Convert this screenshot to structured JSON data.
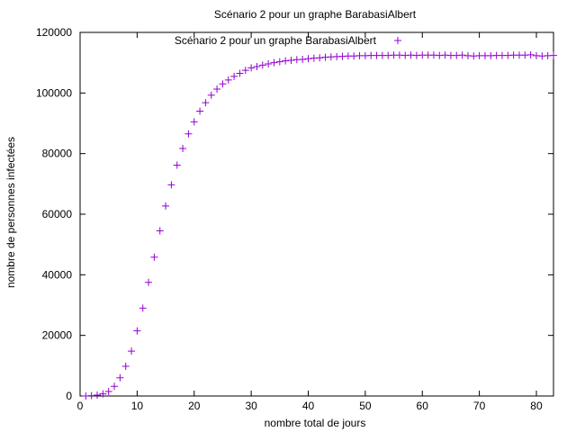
{
  "chart_data": {
    "type": "scatter",
    "title": "Scénario 2 pour un graphe BarabasiAlbert",
    "xlabel": "nombre total de jours",
    "ylabel": "nombre de personnes infectées",
    "xlim": [
      0,
      83
    ],
    "ylim": [
      0,
      120000
    ],
    "x_ticks": [
      0,
      10,
      20,
      30,
      40,
      50,
      60,
      70,
      80
    ],
    "y_ticks": [
      0,
      20000,
      40000,
      60000,
      80000,
      100000,
      120000
    ],
    "grid": false,
    "legend_position": "top-right",
    "marker": "plus",
    "series": [
      {
        "name": "Scénario 2 pour un graphe BarabasiAlbert",
        "color": "#9400d3",
        "x": [
          1,
          2,
          3,
          4,
          5,
          6,
          7,
          8,
          9,
          10,
          11,
          12,
          13,
          14,
          15,
          16,
          17,
          18,
          19,
          20,
          21,
          22,
          23,
          24,
          25,
          26,
          27,
          28,
          29,
          30,
          31,
          32,
          33,
          34,
          35,
          36,
          37,
          38,
          39,
          40,
          41,
          42,
          43,
          44,
          45,
          46,
          47,
          48,
          49,
          50,
          51,
          52,
          53,
          54,
          55,
          56,
          57,
          58,
          59,
          60,
          61,
          62,
          63,
          64,
          65,
          66,
          67,
          68,
          69,
          70,
          71,
          72,
          73,
          74,
          75,
          76,
          77,
          78,
          79,
          80,
          81,
          82,
          83
        ],
        "y": [
          0,
          100,
          300,
          700,
          1500,
          3200,
          6000,
          9800,
          14800,
          21500,
          29000,
          37500,
          45800,
          54500,
          62700,
          69700,
          76200,
          81700,
          86500,
          90500,
          94000,
          96800,
          99300,
          101300,
          103000,
          104300,
          105500,
          106500,
          107500,
          108300,
          108700,
          109200,
          109600,
          110000,
          110300,
          110600,
          110800,
          111000,
          111100,
          111300,
          111500,
          111600,
          111800,
          111900,
          112000,
          112100,
          112200,
          112200,
          112300,
          112300,
          112400,
          112400,
          112400,
          112400,
          112500,
          112500,
          112400,
          112500,
          112400,
          112500,
          112500,
          112500,
          112400,
          112500,
          112400,
          112400,
          112500,
          112300,
          112200,
          112300,
          112300,
          112300,
          112400,
          112400,
          112400,
          112500,
          112500,
          112500,
          112600,
          112300,
          112200,
          112300,
          112400
        ]
      }
    ]
  }
}
